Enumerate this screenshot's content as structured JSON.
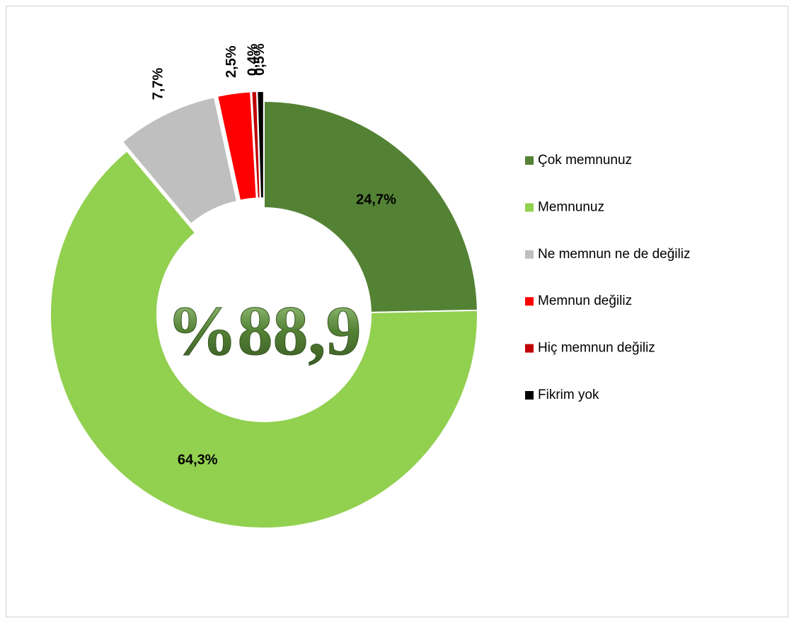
{
  "chart_data": {
    "type": "donut",
    "categories": [
      "Çok memnunuz",
      "Memnunuz",
      "Ne memnun ne de değiliz",
      "Memnun değiliz",
      "Hiç memnun değiliz",
      "Fikrim yok"
    ],
    "values": [
      24.7,
      64.3,
      7.7,
      2.5,
      0.4,
      0.5
    ],
    "value_labels": [
      "24,7%",
      "64,3%",
      "7,7%",
      "2,5%",
      "0,4%",
      "0,5%"
    ],
    "colors": [
      "#548235",
      "#92d050",
      "#bfbfbf",
      "#ff0000",
      "#c00000",
      "#000000"
    ],
    "exploded": [
      false,
      false,
      true,
      true,
      true,
      true
    ],
    "center_label": "%88,9",
    "legend": "right"
  }
}
